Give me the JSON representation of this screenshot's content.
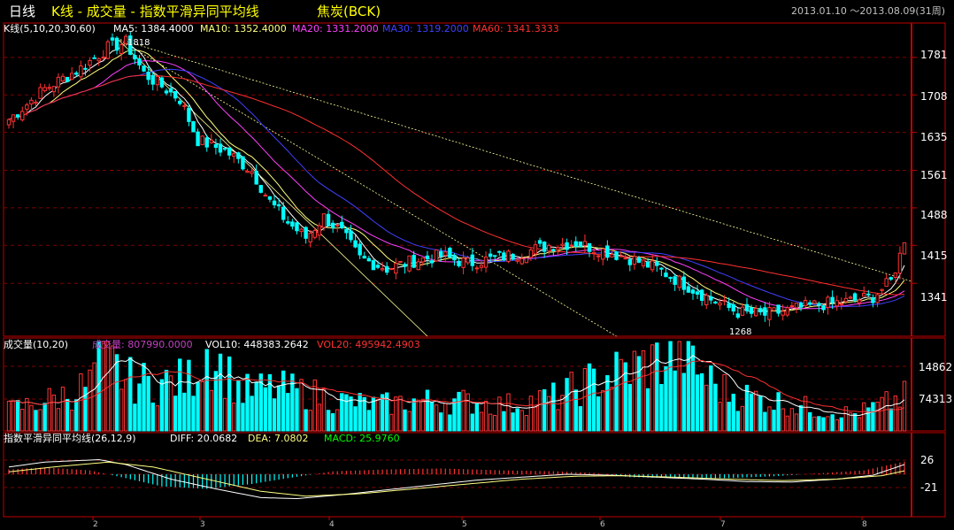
{
  "header": {
    "period": "日线",
    "title": "K线 - 成交量 - 指数平滑异同平均线",
    "symbol": "焦炭(BCK)",
    "range": "2013.01.10 ～2013.08.09(31周)"
  },
  "price_panel": {
    "label": "K线(5,10,20,30,60)",
    "ma": [
      {
        "label": "MA5: 1384.4000",
        "color": "#ffffff"
      },
      {
        "label": "MA10: 1352.4000",
        "color": "#ffff80"
      },
      {
        "label": "MA20: 1331.2000",
        "color": "#ff40ff"
      },
      {
        "label": "MA30: 1319.2000",
        "color": "#4040ff"
      },
      {
        "label": "MA60: 1341.3333",
        "color": "#ff3030"
      }
    ],
    "high_label": "1818",
    "low_label": "1268",
    "ticks": [
      "1781",
      "1708",
      "1635",
      "1561",
      "1488",
      "1415",
      "1341"
    ]
  },
  "volume_panel": {
    "label": "成交量(10,20)",
    "vol_label": "成交量: 807990.0000",
    "vol10_label": "VOL10: 448383.2642",
    "vol20_label": "VOL20: 495942.4903",
    "ticks": [
      "14862",
      "74313"
    ]
  },
  "macd_panel": {
    "label": "指数平滑异同平均线(26,12,9)",
    "diff_label": "DIFF: 20.0682",
    "dea_label": "DEA: 7.0802",
    "macd_label": "MACD: 25.9760",
    "ticks": [
      "26",
      "-21"
    ]
  },
  "x_axis": {
    "labels": [
      "2",
      "3",
      "4",
      "5",
      "6",
      "7",
      "8"
    ]
  },
  "colors": {
    "up": "#ff3232",
    "down": "#00ffff",
    "axis": "#c00000",
    "grid": "#800000",
    "text_white": "#ffffff",
    "text_yellow": "#ffff00",
    "macd_label_color": "#ffff00",
    "diff_color": "#ffffff",
    "dea_color": "#ffff80",
    "macd_value_color": "#00ff00",
    "vol10_color": "#ffffff",
    "vol20_color": "#ff3030",
    "vol_label_color": "#c040c0"
  },
  "chart_data": [
    {
      "type": "candlestick",
      "title": "K线(5,10,20,30,60)",
      "ylim": [
        1268,
        1818
      ],
      "high": 1818,
      "low": 1268,
      "last_close": 1420,
      "ma_last": {
        "MA5": 1384.4,
        "MA10": 1352.4,
        "MA20": 1331.2,
        "MA30": 1319.2,
        "MA60": 1341.3333
      },
      "close_path": [
        [
          0,
          1660
        ],
        [
          8,
          1720
        ],
        [
          16,
          1760
        ],
        [
          22,
          1800
        ],
        [
          26,
          1810
        ],
        [
          30,
          1750
        ],
        [
          38,
          1700
        ],
        [
          42,
          1620
        ],
        [
          48,
          1600
        ],
        [
          54,
          1560
        ],
        [
          58,
          1500
        ],
        [
          62,
          1460
        ],
        [
          66,
          1430
        ],
        [
          70,
          1470
        ],
        [
          74,
          1440
        ],
        [
          78,
          1390
        ],
        [
          84,
          1370
        ],
        [
          90,
          1385
        ],
        [
          96,
          1395
        ],
        [
          102,
          1380
        ],
        [
          108,
          1390
        ],
        [
          114,
          1400
        ],
        [
          120,
          1415
        ],
        [
          126,
          1420
        ],
        [
          132,
          1405
        ],
        [
          138,
          1390
        ],
        [
          144,
          1370
        ],
        [
          150,
          1340
        ],
        [
          156,
          1310
        ],
        [
          162,
          1285
        ],
        [
          168,
          1280
        ],
        [
          174,
          1290
        ],
        [
          180,
          1300
        ],
        [
          186,
          1305
        ],
        [
          192,
          1315
        ],
        [
          196,
          1345
        ],
        [
          199,
          1420
        ]
      ],
      "volume_path": [
        [
          0,
          0.25
        ],
        [
          8,
          0.35
        ],
        [
          14,
          0.45
        ],
        [
          18,
          0.55
        ],
        [
          20,
          0.95
        ],
        [
          26,
          0.6
        ],
        [
          32,
          0.55
        ],
        [
          40,
          0.6
        ],
        [
          44,
          0.95
        ],
        [
          52,
          0.45
        ],
        [
          58,
          0.5
        ],
        [
          66,
          0.45
        ],
        [
          74,
          0.35
        ],
        [
          82,
          0.3
        ],
        [
          90,
          0.35
        ],
        [
          100,
          0.35
        ],
        [
          110,
          0.3
        ],
        [
          116,
          0.35
        ],
        [
          122,
          0.4
        ],
        [
          128,
          0.55
        ],
        [
          136,
          0.7
        ],
        [
          146,
          0.85
        ],
        [
          150,
          0.95
        ],
        [
          154,
          0.65
        ],
        [
          160,
          0.45
        ],
        [
          170,
          0.35
        ],
        [
          180,
          0.25
        ],
        [
          188,
          0.2
        ],
        [
          194,
          0.3
        ],
        [
          199,
          0.4
        ]
      ],
      "macd_diff_path": [
        [
          0,
          15
        ],
        [
          8,
          25
        ],
        [
          20,
          30
        ],
        [
          26,
          20
        ],
        [
          36,
          -10
        ],
        [
          46,
          -30
        ],
        [
          56,
          -48
        ],
        [
          64,
          -50
        ],
        [
          74,
          -42
        ],
        [
          84,
          -32
        ],
        [
          94,
          -22
        ],
        [
          104,
          -12
        ],
        [
          114,
          -6
        ],
        [
          124,
          0
        ],
        [
          134,
          -2
        ],
        [
          144,
          -6
        ],
        [
          154,
          -10
        ],
        [
          164,
          -15
        ],
        [
          174,
          -16
        ],
        [
          184,
          -10
        ],
        [
          192,
          -2
        ],
        [
          199,
          20
        ]
      ],
      "macd_dea_path": [
        [
          0,
          5
        ],
        [
          10,
          15
        ],
        [
          22,
          25
        ],
        [
          32,
          15
        ],
        [
          44,
          -10
        ],
        [
          56,
          -35
        ],
        [
          66,
          -45
        ],
        [
          78,
          -40
        ],
        [
          90,
          -30
        ],
        [
          102,
          -20
        ],
        [
          114,
          -10
        ],
        [
          126,
          -4
        ],
        [
          136,
          -3
        ],
        [
          148,
          -6
        ],
        [
          160,
          -10
        ],
        [
          172,
          -13
        ],
        [
          184,
          -10
        ],
        [
          194,
          -3
        ],
        [
          199,
          7
        ]
      ],
      "macd_bar_path": [
        [
          0,
          10
        ],
        [
          8,
          14
        ],
        [
          18,
          8
        ],
        [
          26,
          -8
        ],
        [
          34,
          -25
        ],
        [
          44,
          -30
        ],
        [
          54,
          -20
        ],
        [
          62,
          -8
        ],
        [
          72,
          6
        ],
        [
          84,
          10
        ],
        [
          96,
          12
        ],
        [
          110,
          8
        ],
        [
          122,
          6
        ],
        [
          130,
          3
        ],
        [
          138,
          -6
        ],
        [
          150,
          -8
        ],
        [
          160,
          -8
        ],
        [
          170,
          -4
        ],
        [
          180,
          2
        ],
        [
          190,
          8
        ],
        [
          199,
          26
        ]
      ]
    }
  ]
}
